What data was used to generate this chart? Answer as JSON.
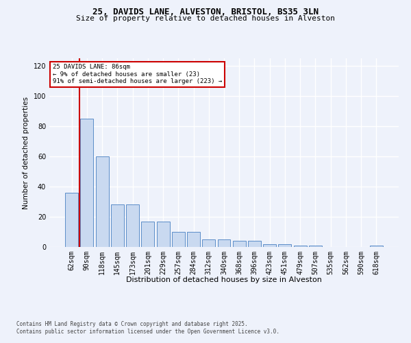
{
  "title_line1": "25, DAVIDS LANE, ALVESTON, BRISTOL, BS35 3LN",
  "title_line2": "Size of property relative to detached houses in Alveston",
  "xlabel": "Distribution of detached houses by size in Alveston",
  "ylabel": "Number of detached properties",
  "categories": [
    "62sqm",
    "90sqm",
    "118sqm",
    "145sqm",
    "173sqm",
    "201sqm",
    "229sqm",
    "257sqm",
    "284sqm",
    "312sqm",
    "340sqm",
    "368sqm",
    "396sqm",
    "423sqm",
    "451sqm",
    "479sqm",
    "507sqm",
    "535sqm",
    "562sqm",
    "590sqm",
    "618sqm"
  ],
  "values": [
    36,
    85,
    60,
    28,
    28,
    17,
    17,
    10,
    10,
    5,
    5,
    4,
    4,
    2,
    2,
    1,
    1,
    0,
    0,
    0,
    1
  ],
  "bar_color": "#c9d9f0",
  "bar_edge_color": "#5b8dc8",
  "annotation_line1": "25 DAVIDS LANE: 86sqm",
  "annotation_line2": "← 9% of detached houses are smaller (23)",
  "annotation_line3": "91% of semi-detached houses are larger (223) →",
  "ylim": [
    0,
    125
  ],
  "yticks": [
    0,
    20,
    40,
    60,
    80,
    100,
    120
  ],
  "footer_line1": "Contains HM Land Registry data © Crown copyright and database right 2025.",
  "footer_line2": "Contains public sector information licensed under the Open Government Licence v3.0.",
  "background_color": "#eef2fb",
  "plot_background": "#eef2fb",
  "grid_color": "#ffffff",
  "red_line_color": "#cc0000",
  "annotation_box_color": "#ffffff",
  "annotation_box_edge": "#cc0000",
  "title_fontsize": 9,
  "subtitle_fontsize": 8,
  "ylabel_fontsize": 7.5,
  "xlabel_fontsize": 8,
  "tick_fontsize": 7,
  "footer_fontsize": 5.5
}
